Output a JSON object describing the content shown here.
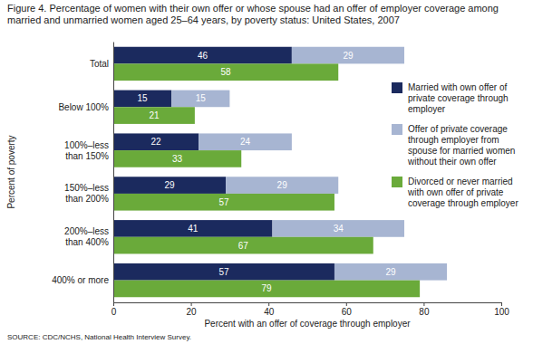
{
  "chart_data": {
    "type": "bar",
    "orientation": "horizontal",
    "title": "Figure 4. Percentage of women with their own offer or whose spouse had an offer of employer coverage among married and unmarried women aged 25–64 years, by poverty status: United States, 2007",
    "x_label": "Percent with an offer of coverage through employer",
    "y_label": "Percent of poverty",
    "annotations": [
      "SOURCE: CDC/NCHS, National Health Interview Survey."
    ],
    "categories": [
      "Total",
      "Below 100%",
      "100%–less than 150%",
      "150%–less than 200%",
      "200%–less than 400%",
      "400% or more"
    ],
    "series": [
      {
        "name": "Married with own offer of private coverage through employer",
        "color": "#1b2a5e",
        "values": [
          46,
          15,
          22,
          29,
          41,
          57
        ]
      },
      {
        "name": "Offer of private coverage through employer from spouse for married women without their own offer",
        "color": "#a7b5d2",
        "values": [
          29,
          15,
          24,
          29,
          34,
          29
        ]
      },
      {
        "name": "Divorced or never married with own offer of private coverage through employer",
        "color": "#6aaa3a",
        "values": [
          58,
          21,
          33,
          57,
          67,
          79
        ]
      }
    ],
    "stacked": [
      [
        0,
        1
      ],
      [
        2
      ]
    ],
    "xlim": [
      0,
      100
    ],
    "xticks": [
      0,
      20,
      40,
      60,
      80,
      100
    ],
    "grid": false,
    "legend": "right",
    "data_labels": true
  }
}
